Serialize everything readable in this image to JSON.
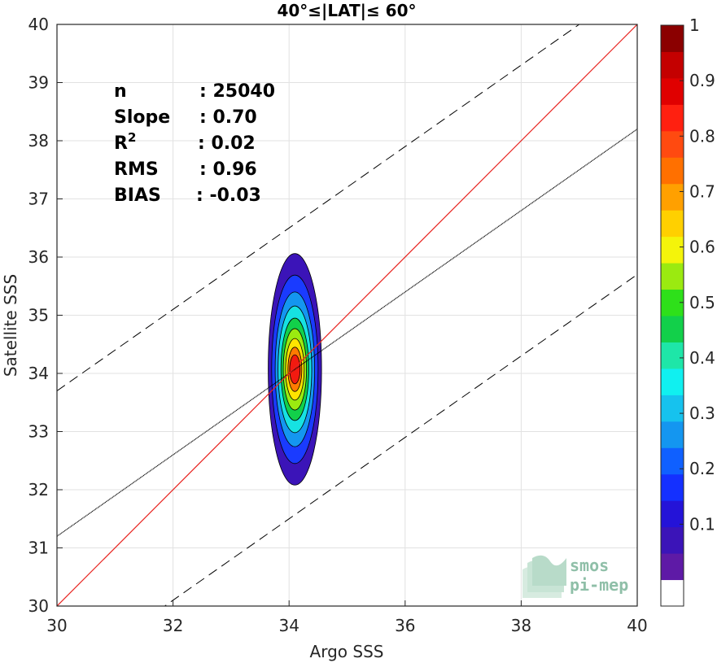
{
  "chart_data": {
    "type": "contour",
    "title": "40°≤|LAT|≤ 60°",
    "xlabel": "Argo SSS",
    "ylabel": "Satellite SSS",
    "xlim": [
      30,
      40
    ],
    "ylim": [
      30,
      40
    ],
    "xticks": [
      30,
      32,
      34,
      36,
      38,
      40
    ],
    "yticks": [
      30,
      31,
      32,
      33,
      34,
      35,
      36,
      37,
      38,
      39,
      40
    ],
    "grid": true,
    "stats": [
      {
        "label": "n",
        "sep": ": ",
        "value": "25040"
      },
      {
        "label": "Slope",
        "sep": ": ",
        "value": "0.70"
      },
      {
        "label": "R",
        "sup": "2",
        "sep": ": ",
        "value": "0.02"
      },
      {
        "label": "RMS",
        "sep": ": ",
        "value": "0.96"
      },
      {
        "label": "BIAS",
        "sep": ": ",
        "value": "-0.03"
      }
    ],
    "lines": {
      "identity": {
        "slope": 1,
        "intercept": 0,
        "color": "#e8231f",
        "style": "solid"
      },
      "fit": {
        "slope": 0.7,
        "intercept": 10.2,
        "color": "#000000",
        "style": "solid"
      },
      "upper_bound": {
        "slope": 0.7,
        "intercept": 12.7,
        "color": "#000000",
        "style": "dashed"
      },
      "lower_bound": {
        "slope": 0.7,
        "intercept": 7.7,
        "color": "#000000",
        "style": "dashed"
      }
    },
    "density_center": {
      "x": 34.1,
      "y": 34.07
    },
    "contours": [
      {
        "level": 0.05,
        "color": "#3b14b8",
        "rx": 0.46,
        "ry": 1.99
      },
      {
        "level": 0.15,
        "color": "#1a3bff",
        "rx": 0.4,
        "ry": 1.62
      },
      {
        "level": 0.25,
        "color": "#1496f0",
        "rx": 0.34,
        "ry": 1.33
      },
      {
        "level": 0.35,
        "color": "#16e2e2",
        "rx": 0.29,
        "ry": 1.09
      },
      {
        "level": 0.45,
        "color": "#12d04a",
        "rx": 0.24,
        "ry": 0.88
      },
      {
        "level": 0.55,
        "color": "#9bea10",
        "rx": 0.2,
        "ry": 0.7
      },
      {
        "level": 0.65,
        "color": "#ffe400",
        "rx": 0.16,
        "ry": 0.53
      },
      {
        "level": 0.75,
        "color": "#ff7a00",
        "rx": 0.12,
        "ry": 0.38
      },
      {
        "level": 0.85,
        "color": "#f21a10",
        "rx": 0.09,
        "ry": 0.25
      }
    ],
    "colorbar": {
      "ticks": [
        "0.1",
        "0.2",
        "0.3",
        "0.4",
        "0.5",
        "0.6",
        "0.7",
        "0.8",
        "0.9",
        "1"
      ],
      "colors": [
        "#ffffff",
        "#5e1aa6",
        "#3b14b8",
        "#2413d8",
        "#1430ff",
        "#0f60ff",
        "#1496f0",
        "#16c2ee",
        "#10f0f0",
        "#1ee6a8",
        "#12d04a",
        "#2ee01a",
        "#9bea10",
        "#f4f40a",
        "#ffd000",
        "#ffa000",
        "#ff7000",
        "#ff4a10",
        "#ff2010",
        "#e00000",
        "#c40000",
        "#8b0000"
      ]
    }
  },
  "logo": {
    "line1": "smos",
    "line2": "pi-mep"
  }
}
